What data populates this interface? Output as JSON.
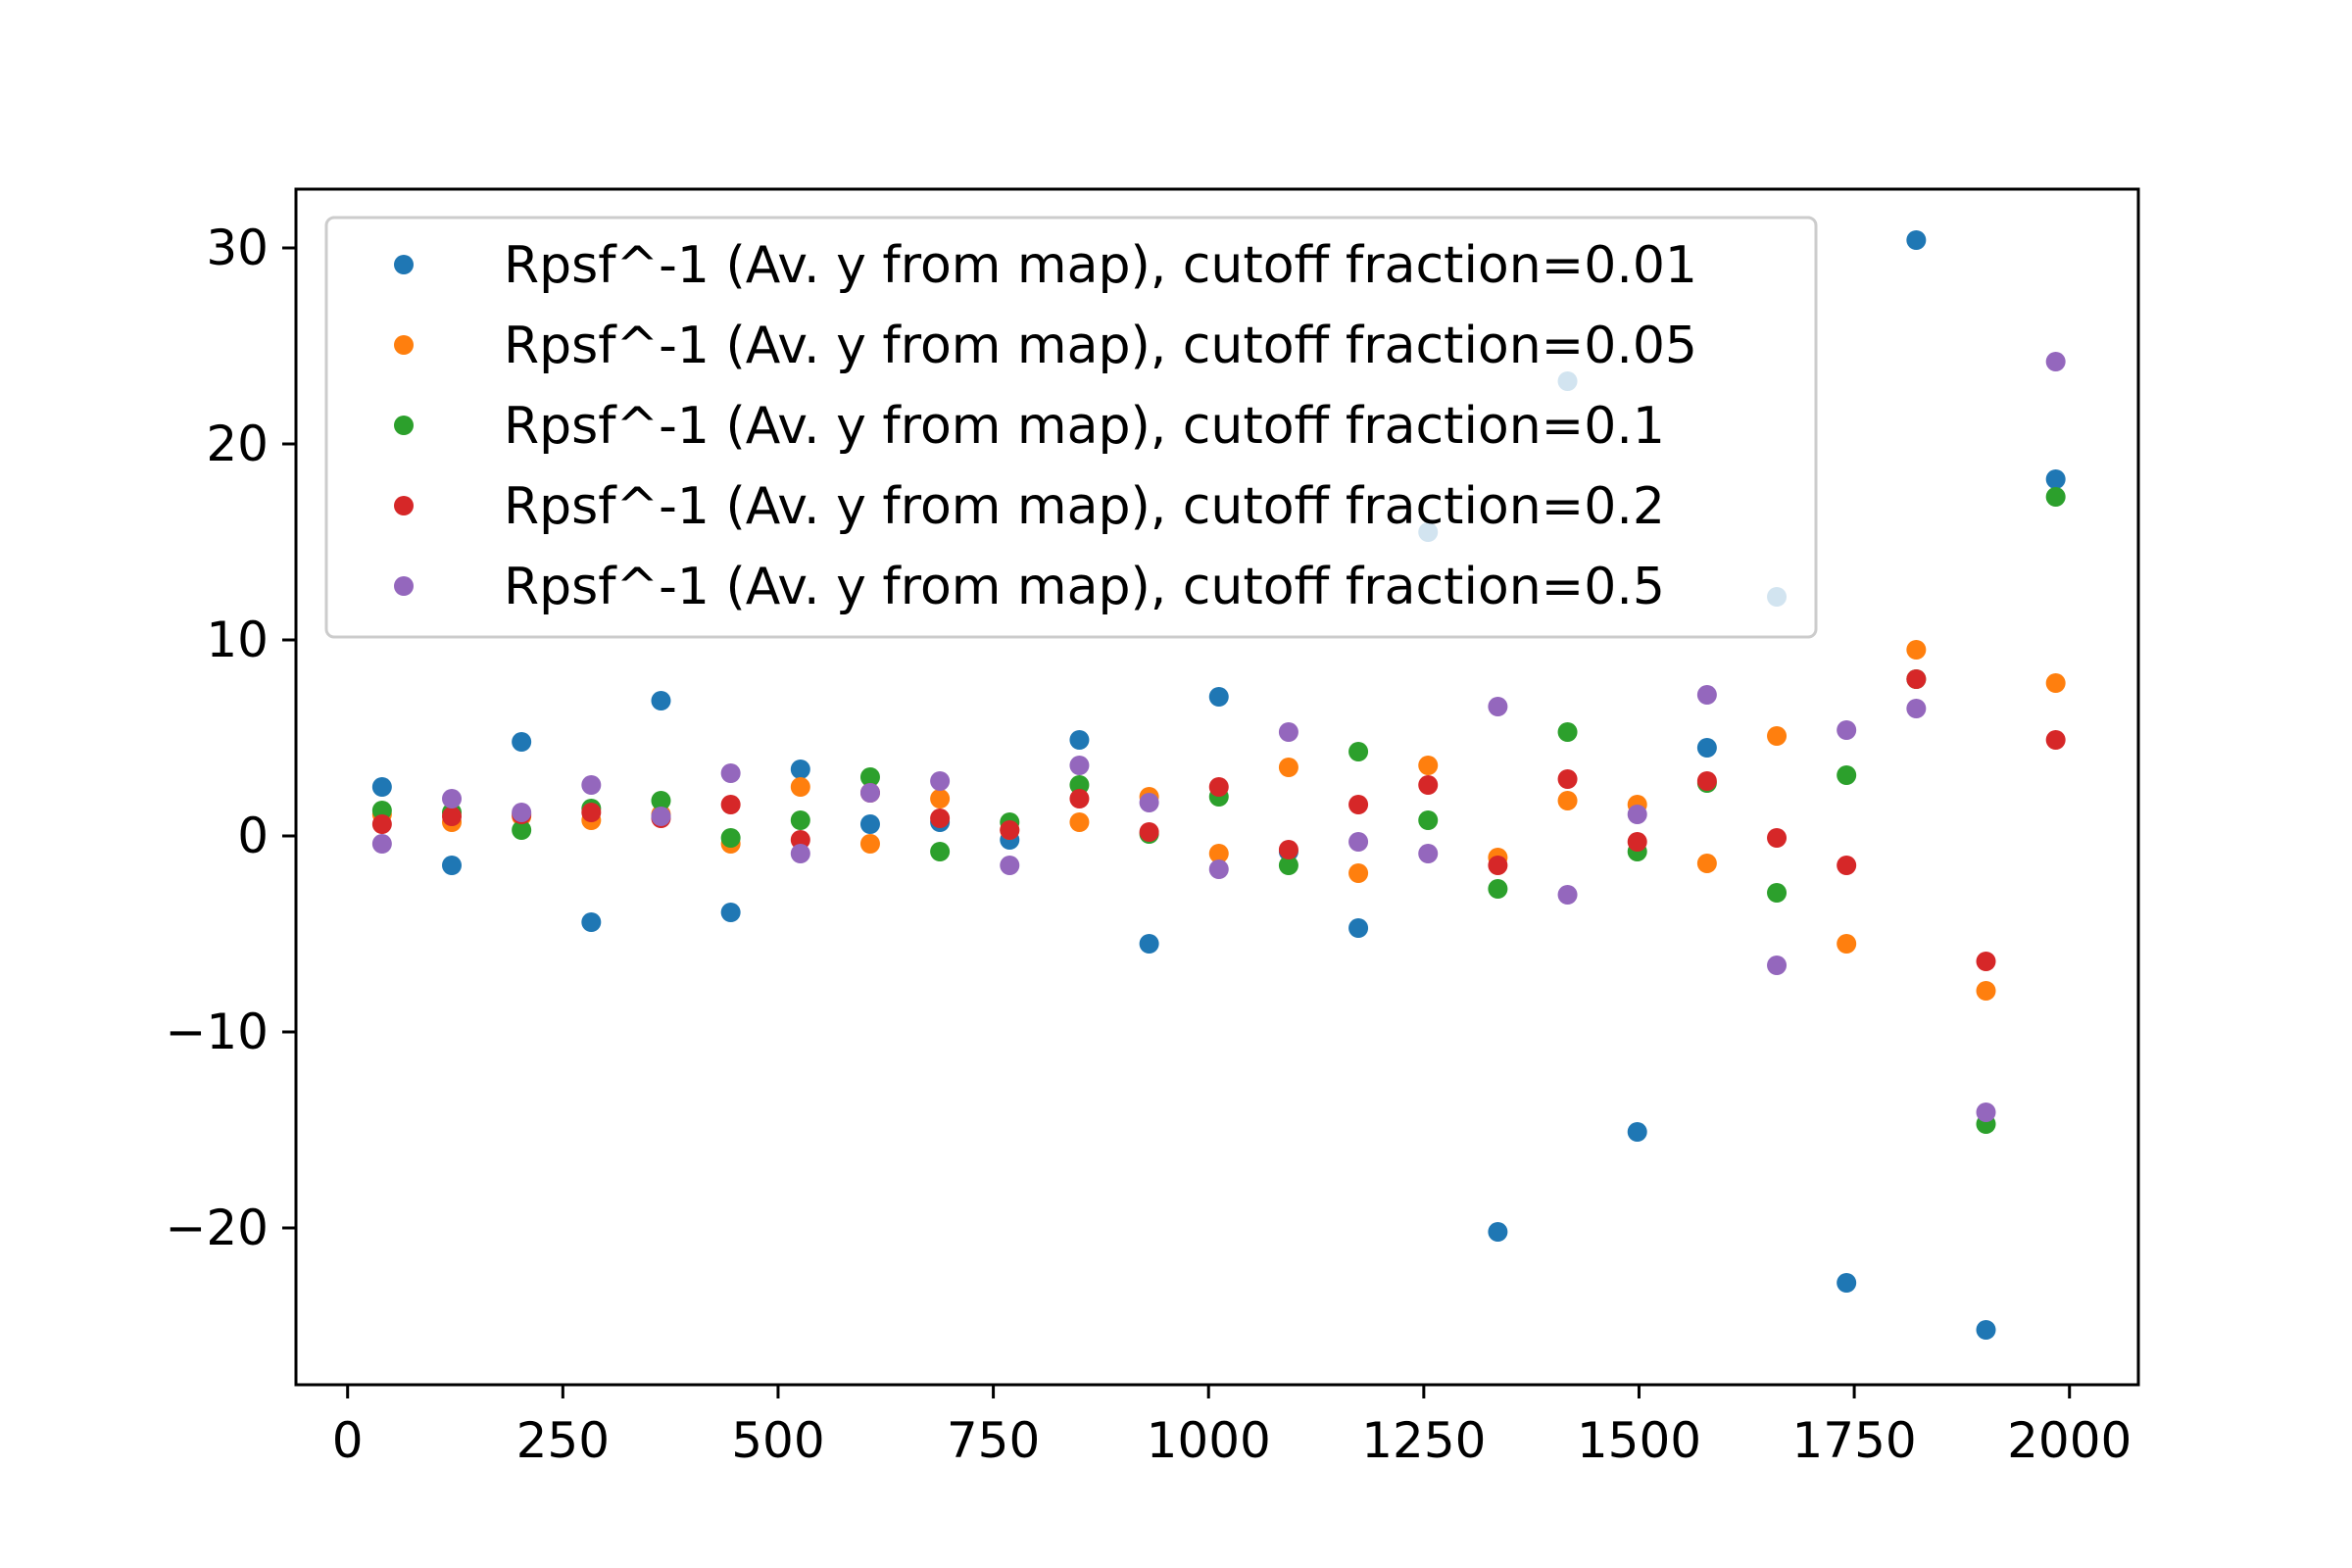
{
  "chart_data": {
    "type": "scatter",
    "title": "",
    "xlabel": "",
    "ylabel": "",
    "xlim": [
      -60,
      2080
    ],
    "ylim": [
      -28,
      33
    ],
    "xticks": [
      0,
      250,
      500,
      750,
      1000,
      1250,
      1500,
      1750,
      2000
    ],
    "yticks": [
      -20,
      -10,
      0,
      10,
      20,
      30
    ],
    "xtick_labels": [
      "0",
      "250",
      "500",
      "750",
      "1000",
      "1250",
      "1500",
      "1750",
      "2000"
    ],
    "ytick_labels": [
      "−20",
      "−10",
      "0",
      "10",
      "20",
      "30"
    ],
    "grid": false,
    "legend_position": "upper-left",
    "x": [
      40,
      121,
      202,
      283,
      364,
      445,
      526,
      607,
      688,
      769,
      850,
      931,
      1012,
      1093,
      1174,
      1255,
      1336,
      1417,
      1498,
      1579,
      1660,
      1741,
      1822,
      1903,
      1984
    ],
    "series": [
      {
        "name": "Rpsf^-1 (Av. y from map), cutoff fraction=0.01",
        "color": "#1f77b4",
        "values": [
          2.5,
          -1.5,
          4.8,
          -4.4,
          6.9,
          -3.9,
          3.4,
          0.6,
          0.7,
          -0.2,
          4.9,
          -5.5,
          7.1,
          -0.8,
          -4.7,
          15.5,
          -20.2,
          23.2,
          -15.1,
          4.5,
          12.2,
          -22.8,
          30.4,
          -25.2,
          18.2
        ]
      },
      {
        "name": "Rpsf^-1 (Av. y from map), cutoff fraction=0.05",
        "color": "#ff7f0e",
        "values": [
          1.1,
          0.7,
          1.0,
          0.8,
          1.1,
          -0.4,
          2.5,
          -0.4,
          1.9,
          0.3,
          0.7,
          2.0,
          -0.9,
          3.5,
          -1.9,
          3.6,
          -1.1,
          1.8,
          1.6,
          -1.4,
          5.1,
          -5.5,
          9.5,
          -7.9,
          7.8
        ]
      },
      {
        "name": "Rpsf^-1 (Av. y from map), cutoff fraction=0.1",
        "color": "#2ca02c",
        "values": [
          1.3,
          1.2,
          0.3,
          1.4,
          1.8,
          -0.1,
          0.8,
          3.0,
          -0.8,
          0.7,
          2.6,
          0.1,
          2.0,
          -1.5,
          4.3,
          0.8,
          -2.7,
          5.3,
          -0.8,
          2.7,
          -2.9,
          3.1,
          8.0,
          -14.7,
          17.3
        ]
      },
      {
        "name": "Rpsf^-1 (Av. y from map), cutoff fraction=0.2",
        "color": "#d62728",
        "values": [
          0.6,
          1.0,
          1.1,
          1.2,
          0.9,
          1.6,
          -0.2,
          2.2,
          0.9,
          0.3,
          1.9,
          0.2,
          2.5,
          -0.7,
          1.6,
          2.6,
          -1.5,
          2.9,
          -0.3,
          2.8,
          -0.1,
          -1.5,
          8.0,
          -6.4,
          4.9
        ]
      },
      {
        "name": "Rpsf^-1 (Av. y from map), cutoff fraction=0.5",
        "color": "#9467bd",
        "values": [
          -0.4,
          1.9,
          1.2,
          2.6,
          1.0,
          3.2,
          -0.9,
          2.2,
          2.8,
          -1.5,
          3.6,
          1.7,
          -1.7,
          5.3,
          -0.3,
          -0.9,
          6.6,
          -3.0,
          1.1,
          7.2,
          -6.6,
          5.4,
          6.5,
          -14.1,
          24.2
        ]
      }
    ]
  }
}
